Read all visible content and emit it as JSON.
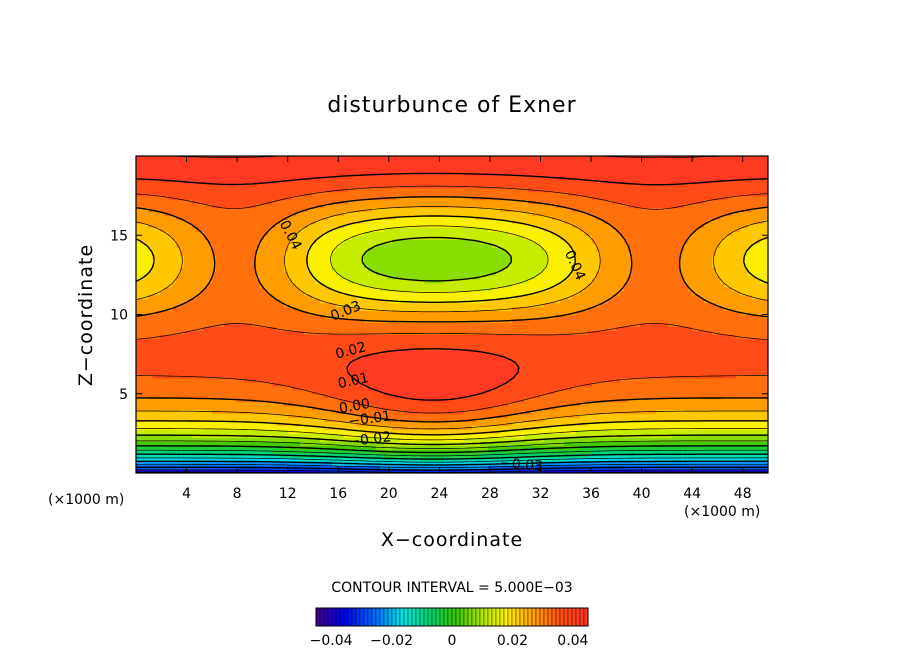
{
  "chart_data": {
    "type": "heatmap",
    "title": "disturbunce of Exner",
    "xlabel": "X−coordinate",
    "ylabel": "Z−coordinate",
    "x_unit_label": "(×1000 m)",
    "z_unit_label": "(×1000 m)",
    "xlim": [
      0,
      50
    ],
    "ylim": [
      0,
      20
    ],
    "x_ticks": [
      4,
      8,
      12,
      16,
      20,
      24,
      28,
      32,
      36,
      40,
      44,
      48
    ],
    "y_ticks": [
      5,
      10,
      15
    ],
    "contour_interval_text": "CONTOUR INTERVAL = 5.000E−03",
    "contour_interval": 0.005,
    "value_range": [
      -0.045,
      0.045
    ],
    "contour_labels": [
      {
        "text": "0.04",
        "x": 12.2,
        "z": 15.0,
        "angle": 62
      },
      {
        "text": "0.04",
        "x": 34.7,
        "z": 13.1,
        "angle": 66
      },
      {
        "text": "0.03",
        "x": 16.6,
        "z": 10.2,
        "angle": -22
      },
      {
        "text": "0.02",
        "x": 17.0,
        "z": 7.7,
        "angle": -15
      },
      {
        "text": "0.01",
        "x": 17.2,
        "z": 5.8,
        "angle": -12
      },
      {
        "text": "0.00",
        "x": 17.3,
        "z": 4.2,
        "angle": -10
      },
      {
        "text": "−0.01",
        "x": 18.5,
        "z": 3.4,
        "angle": -8
      },
      {
        "text": "−0.02",
        "x": 18.5,
        "z": 2.1,
        "angle": -7
      },
      {
        "text": "−0.03",
        "x": 30.5,
        "z": 0.5,
        "angle": 5
      }
    ],
    "colorbar": {
      "ticks": [
        -0.04,
        -0.02,
        0,
        0.02,
        0.04
      ],
      "tick_labels": [
        "−0.04",
        "−0.02",
        "0",
        "0.02",
        "0.04"
      ]
    },
    "legend": "none",
    "grid": false
  }
}
